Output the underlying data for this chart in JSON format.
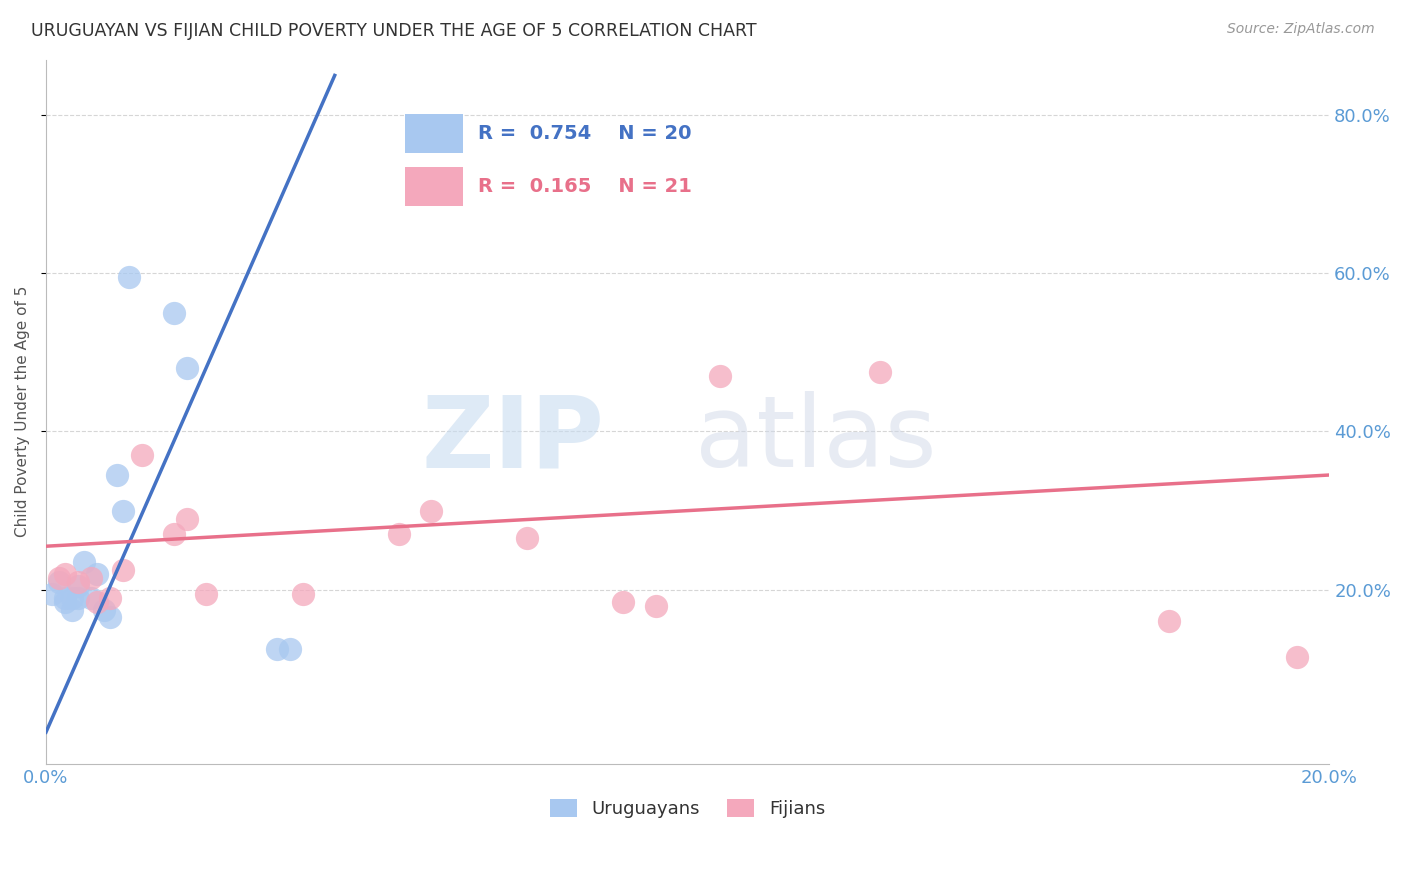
{
  "title": "URUGUAYAN VS FIJIAN CHILD POVERTY UNDER THE AGE OF 5 CORRELATION CHART",
  "source": "Source: ZipAtlas.com",
  "ylabel": "Child Poverty Under the Age of 5",
  "xlim": [
    0.0,
    0.2
  ],
  "ylim": [
    -0.02,
    0.87
  ],
  "yticks": [
    0.2,
    0.4,
    0.6,
    0.8
  ],
  "ytick_labels": [
    "20.0%",
    "40.0%",
    "60.0%",
    "80.0%"
  ],
  "xticks": [
    0.0,
    0.04,
    0.08,
    0.12,
    0.16,
    0.2
  ],
  "xtick_labels": [
    "0.0%",
    "",
    "",
    "",
    "",
    "20.0%"
  ],
  "uruguayan_color": "#A8C8F0",
  "fijian_color": "#F4A8BC",
  "uruguayan_line_color": "#4472C4",
  "fijian_line_color": "#E8708A",
  "background_color": "#FFFFFF",
  "grid_color": "#CCCCCC",
  "uruguayan_x": [
    0.001,
    0.002,
    0.003,
    0.003,
    0.004,
    0.004,
    0.005,
    0.005,
    0.006,
    0.007,
    0.008,
    0.009,
    0.01,
    0.011,
    0.012,
    0.013,
    0.02,
    0.022,
    0.036,
    0.038
  ],
  "uruguayan_y": [
    0.195,
    0.21,
    0.185,
    0.19,
    0.175,
    0.19,
    0.19,
    0.205,
    0.235,
    0.19,
    0.22,
    0.175,
    0.165,
    0.345,
    0.3,
    0.595,
    0.55,
    0.48,
    0.125,
    0.125
  ],
  "fijian_x": [
    0.002,
    0.003,
    0.005,
    0.007,
    0.008,
    0.01,
    0.012,
    0.015,
    0.02,
    0.022,
    0.025,
    0.04,
    0.055,
    0.06,
    0.075,
    0.09,
    0.095,
    0.105,
    0.13,
    0.175,
    0.195
  ],
  "fijian_y": [
    0.215,
    0.22,
    0.21,
    0.215,
    0.185,
    0.19,
    0.225,
    0.37,
    0.27,
    0.29,
    0.195,
    0.195,
    0.27,
    0.3,
    0.265,
    0.185,
    0.18,
    0.47,
    0.475,
    0.16,
    0.115
  ],
  "blue_line_x": [
    0.0,
    0.045
  ],
  "blue_line_y": [
    0.02,
    0.85
  ],
  "pink_line_x": [
    0.0,
    0.2
  ],
  "pink_line_y": [
    0.255,
    0.345
  ],
  "legend_R_uruguayan": "0.754",
  "legend_N_uruguayan": "20",
  "legend_R_fijian": "0.165",
  "legend_N_fijian": "21"
}
